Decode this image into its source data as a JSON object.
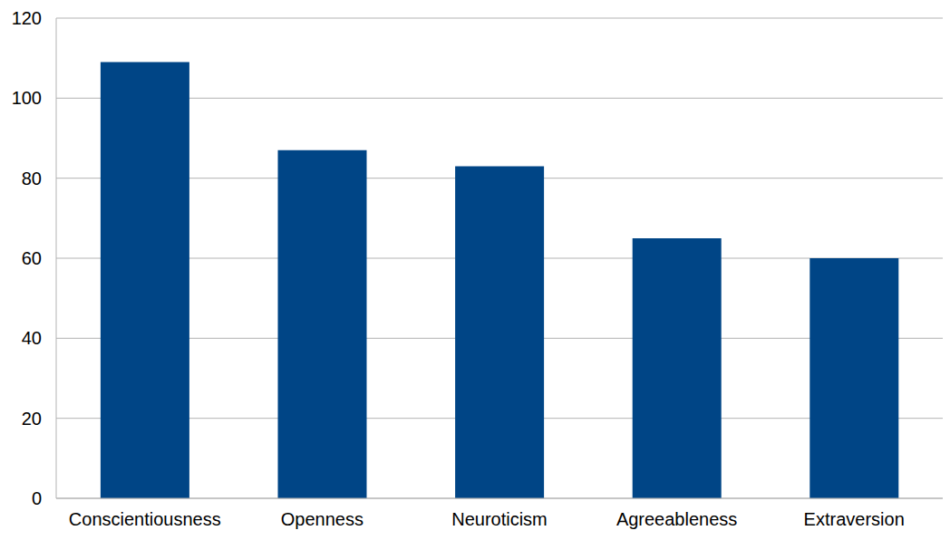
{
  "chart_data": {
    "type": "bar",
    "categories": [
      "Conscientiousness",
      "Openness",
      "Neuroticism",
      "Agreeableness",
      "Extraversion"
    ],
    "values": [
      109,
      87,
      83,
      65,
      60
    ],
    "color": "#004586",
    "ylim": [
      0,
      120
    ],
    "yticks": [
      0,
      20,
      40,
      60,
      80,
      100,
      120
    ],
    "grid": true
  }
}
